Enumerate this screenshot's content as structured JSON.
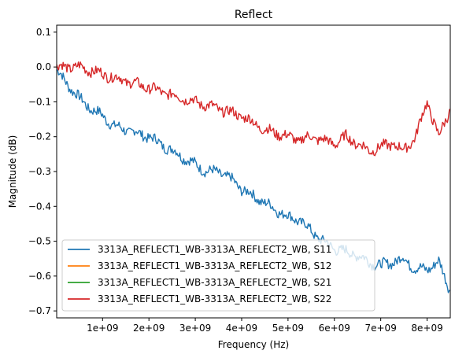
{
  "chart_data": {
    "type": "line",
    "title": "Reflect",
    "xlabel": "Frequency (Hz)",
    "ylabel": "Magnitude (dB)",
    "xlim": [
      10000000,
      8500000000
    ],
    "ylim": [
      -0.72,
      0.12
    ],
    "xticks": [
      1000000000,
      2000000000,
      3000000000,
      4000000000,
      5000000000,
      6000000000,
      7000000000,
      8000000000
    ],
    "xtick_labels": [
      "1e+09",
      "2e+09",
      "3e+09",
      "4e+09",
      "5e+09",
      "6e+09",
      "7e+09",
      "8e+09"
    ],
    "yticks": [
      0.1,
      0.0,
      -0.1,
      -0.2,
      -0.3,
      -0.4,
      -0.5,
      -0.6,
      -0.7
    ],
    "ytick_labels": [
      "0.1",
      "0.0",
      "−0.1",
      "−0.2",
      "−0.3",
      "−0.4",
      "−0.5",
      "−0.6",
      "−0.7"
    ],
    "grid": false,
    "legend_position": "lower-left",
    "series": [
      {
        "name": "3313A_REFLECT1_WB-3313A_REFLECT2_WB, S11",
        "color": "#1f77b4",
        "x": [
          10000000,
          250000000,
          500000000,
          750000000,
          1000000000,
          1250000000,
          1500000000,
          1750000000,
          2000000000,
          2250000000,
          2500000000,
          2750000000,
          3000000000,
          3250000000,
          3500000000,
          3750000000,
          4000000000,
          4250000000,
          4500000000,
          4750000000,
          5000000000,
          5250000000,
          5500000000,
          5750000000,
          6000000000,
          6250000000,
          6500000000,
          6750000000,
          7000000000,
          7250000000,
          7500000000,
          7750000000,
          8000000000,
          8250000000,
          8500000000
        ],
        "y": [
          -0.01,
          -0.05,
          -0.09,
          -0.12,
          -0.14,
          -0.17,
          -0.18,
          -0.19,
          -0.2,
          -0.22,
          -0.24,
          -0.26,
          -0.28,
          -0.3,
          -0.3,
          -0.32,
          -0.35,
          -0.37,
          -0.39,
          -0.41,
          -0.43,
          -0.44,
          -0.47,
          -0.5,
          -0.52,
          -0.53,
          -0.54,
          -0.56,
          -0.57,
          -0.56,
          -0.55,
          -0.58,
          -0.58,
          -0.56,
          -0.64
        ]
      },
      {
        "name": "3313A_REFLECT1_WB-3313A_REFLECT2_WB, S12",
        "color": "#ff7f0e",
        "x": [],
        "y": []
      },
      {
        "name": "3313A_REFLECT1_WB-3313A_REFLECT2_WB, S21",
        "color": "#2ca02c",
        "x": [],
        "y": []
      },
      {
        "name": "3313A_REFLECT1_WB-3313A_REFLECT2_WB, S22",
        "color": "#d62728",
        "x": [
          10000000,
          250000000,
          500000000,
          750000000,
          1000000000,
          1250000000,
          1500000000,
          1750000000,
          2000000000,
          2250000000,
          2500000000,
          2750000000,
          3000000000,
          3250000000,
          3500000000,
          3750000000,
          4000000000,
          4250000000,
          4500000000,
          4750000000,
          5000000000,
          5250000000,
          5500000000,
          5750000000,
          6000000000,
          6250000000,
          6500000000,
          6750000000,
          7000000000,
          7250000000,
          7500000000,
          7750000000,
          8000000000,
          8250000000,
          8500000000
        ],
        "y": [
          0.0,
          0.0,
          0.0,
          -0.01,
          -0.02,
          -0.03,
          -0.04,
          -0.05,
          -0.06,
          -0.07,
          -0.08,
          -0.09,
          -0.1,
          -0.11,
          -0.12,
          -0.13,
          -0.14,
          -0.16,
          -0.18,
          -0.19,
          -0.2,
          -0.21,
          -0.2,
          -0.21,
          -0.22,
          -0.2,
          -0.22,
          -0.24,
          -0.23,
          -0.22,
          -0.24,
          -0.2,
          -0.1,
          -0.2,
          -0.12
        ]
      }
    ]
  }
}
